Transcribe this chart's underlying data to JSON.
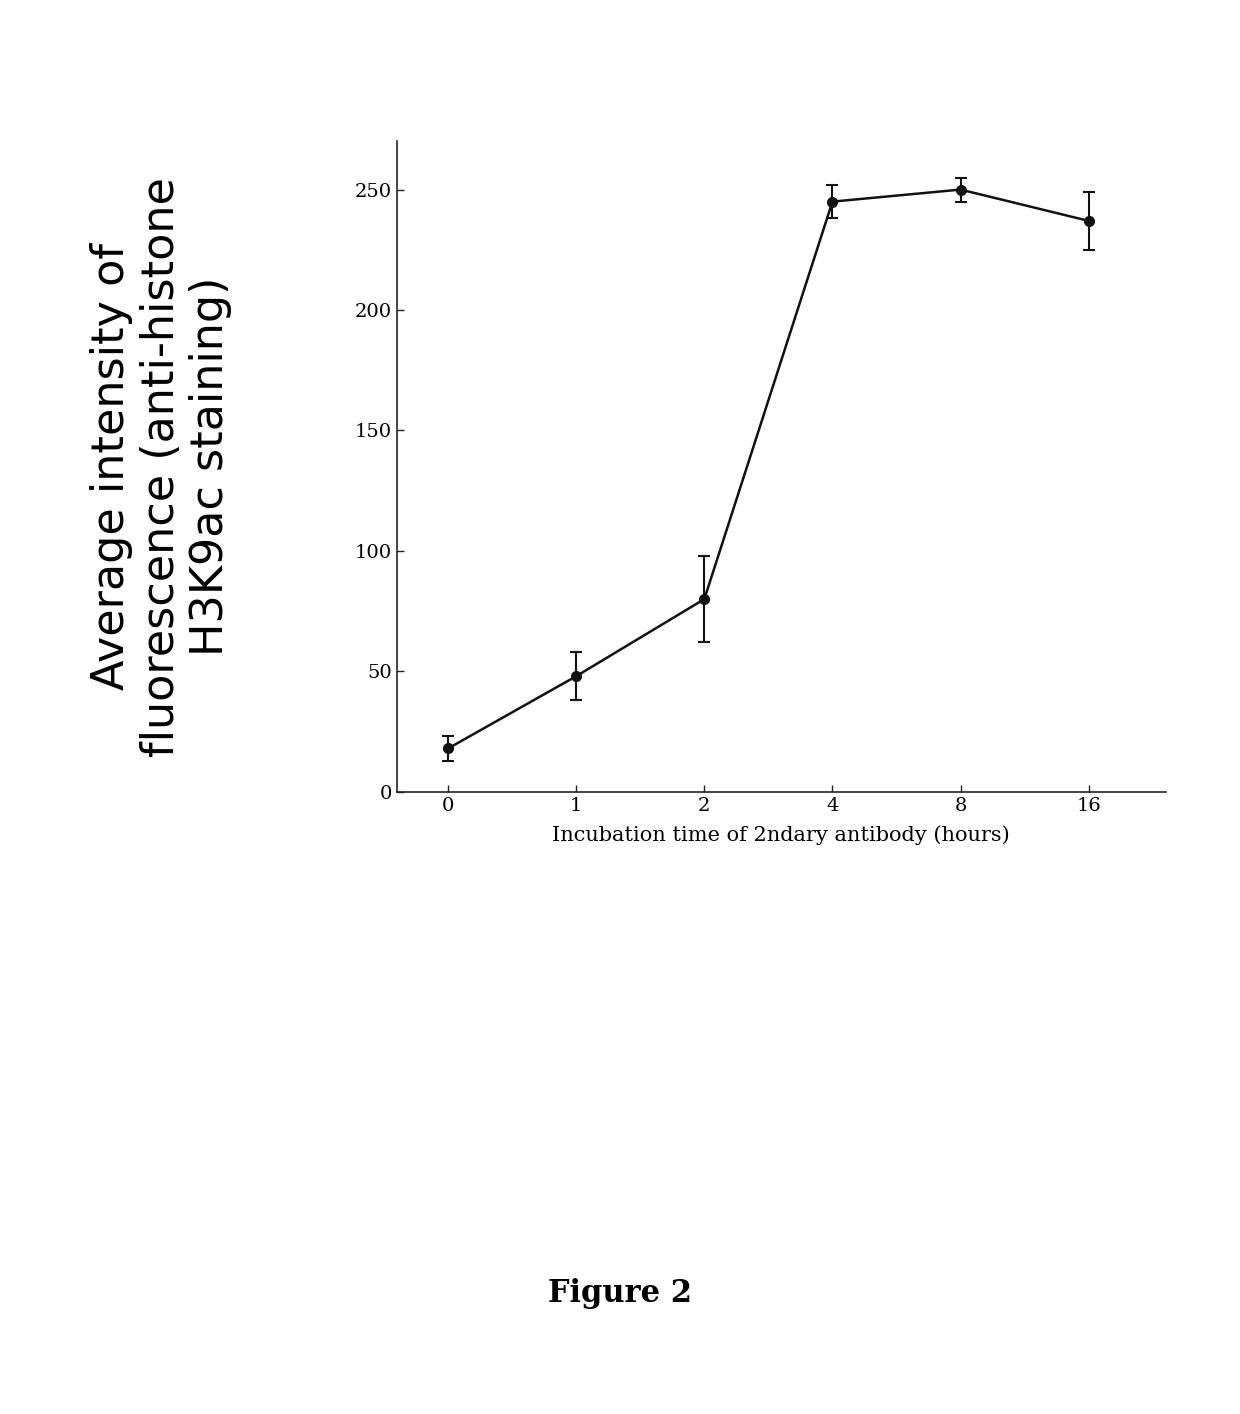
{
  "x_positions": [
    0,
    1,
    2,
    3,
    4,
    5
  ],
  "x_labels": [
    "0",
    "1",
    "2",
    "4",
    "8",
    "16"
  ],
  "y": [
    18,
    48,
    80,
    245,
    250,
    237
  ],
  "yerr": [
    5,
    10,
    18,
    7,
    5,
    12
  ],
  "xlabel": "Incubation time of 2ndary antibody (hours)",
  "ylabel_line1": "Average intensity of",
  "ylabel_line2": "fluorescence (anti-histone",
  "ylabel_line3": "H3K9ac staining)",
  "yticks": [
    0,
    50,
    100,
    150,
    200,
    250
  ],
  "ylim": [
    0,
    270
  ],
  "xlim": [
    -0.4,
    5.6
  ],
  "line_color": "#111111",
  "marker_color": "#111111",
  "marker_size": 7,
  "line_width": 1.8,
  "caption": "Figure 2",
  "caption_fontsize": 22,
  "xlabel_fontsize": 15,
  "ylabel_fontsize": 32,
  "tick_fontsize": 14,
  "background_color": "#ffffff"
}
